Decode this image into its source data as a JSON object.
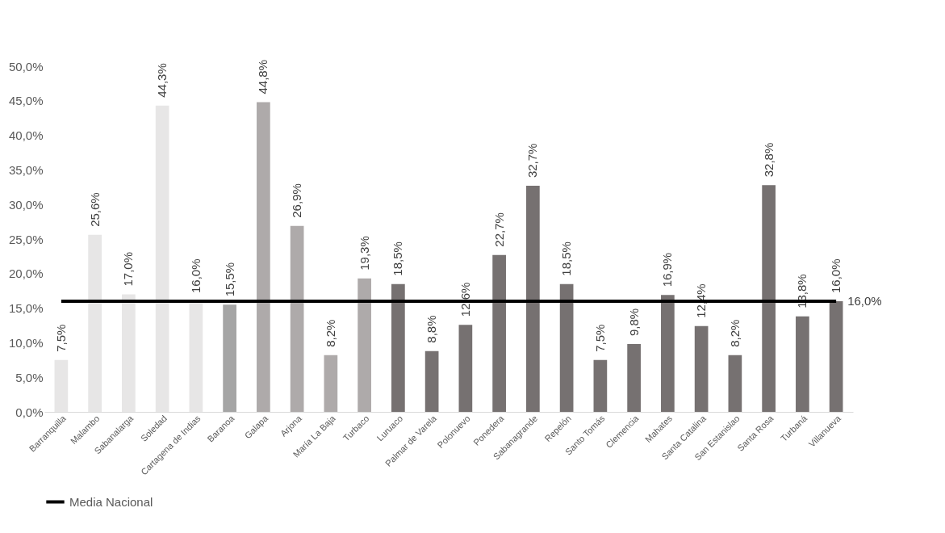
{
  "chart_data": {
    "type": "bar",
    "categories": [
      "Barranquilla",
      "Malambo",
      "Sabanalarga",
      "Soledad",
      "Cartagena de Indias",
      "Baranoa",
      "Galapa",
      "Arjona",
      "María La Baja",
      "Turbaco",
      "Luruaco",
      "Palmar de Varela",
      "Polonuevo",
      "Ponedera",
      "Sabanagrande",
      "Repelón",
      "Santo Tomás",
      "Clemencia",
      "Mahates",
      "Santa Catalina",
      "San Estanislao",
      "Santa Rosa",
      "Turbaná",
      "Villanueva"
    ],
    "series": [
      {
        "values": [
          7.5,
          25.6,
          17.0,
          44.3,
          16.0,
          15.5,
          44.8,
          26.9,
          8.2,
          19.3,
          18.5,
          8.8,
          12.6,
          22.7,
          32.7,
          18.5,
          7.5,
          9.8,
          16.9,
          12.4,
          8.2,
          32.8,
          13.8,
          16.0
        ],
        "colors": [
          "#e7e6e6",
          "#e7e6e6",
          "#e7e6e6",
          "#e7e6e6",
          "#e7e6e6",
          "#a5a5a5",
          "#aeaaaa",
          "#aeaaaa",
          "#aeaaaa",
          "#aeaaaa",
          "#767171",
          "#767171",
          "#767171",
          "#767171",
          "#767171",
          "#767171",
          "#767171",
          "#767171",
          "#767171",
          "#767171",
          "#767171",
          "#767171",
          "#767171",
          "#767171"
        ],
        "value_labels": [
          "7,5%",
          "25,6%",
          "17,0%",
          "44,3%",
          "16,0%",
          "15,5%",
          "44,8%",
          "26,9%",
          "8,2%",
          "19,3%",
          "18,5%",
          "8,8%",
          "12,6%",
          "22,7%",
          "32,7%",
          "18,5%",
          "7,5%",
          "9,8%",
          "16,9%",
          "12,4%",
          "8,2%",
          "32,8%",
          "13,8%",
          "16,0%"
        ]
      },
      {
        "type": "line",
        "name": "Media Nacional",
        "color": "#000000",
        "values": [
          16.0,
          16.0,
          16.0,
          16.0,
          16.0,
          16.0,
          16.0,
          16.0,
          16.0,
          16.0,
          16.0,
          16.0,
          16.0,
          16.0,
          16.0,
          16.0,
          16.0,
          16.0,
          16.0,
          16.0,
          16.0,
          16.0,
          16.0,
          16.0
        ],
        "value_labels": [
          null,
          null,
          null,
          null,
          null,
          null,
          null,
          null,
          null,
          null,
          null,
          null,
          null,
          null,
          null,
          null,
          null,
          null,
          null,
          null,
          null,
          null,
          null,
          "16,0%"
        ]
      }
    ],
    "ylim": [
      0,
      50
    ],
    "yticks": [
      {
        "value": 0,
        "label": "0,0%"
      },
      {
        "value": 5,
        "label": "5,0%"
      },
      {
        "value": 10,
        "label": "10,0%"
      },
      {
        "value": 15,
        "label": "15,0%"
      },
      {
        "value": 20,
        "label": "20,0%"
      },
      {
        "value": 25,
        "label": "25,0%"
      },
      {
        "value": 30,
        "label": "30,0%"
      },
      {
        "value": 35,
        "label": "35,0%"
      },
      {
        "value": 40,
        "label": "40,0%"
      },
      {
        "value": 45,
        "label": "45,0%"
      },
      {
        "value": 50,
        "label": "50,0%"
      }
    ],
    "grid": false,
    "legend": "bottom"
  }
}
